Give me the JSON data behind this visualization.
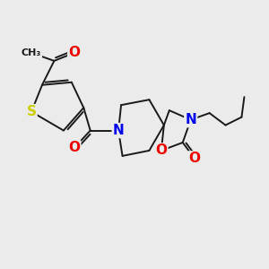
{
  "background_color": "#ebebeb",
  "atom_colors": {
    "C": "#1a1a1a",
    "N": "#0000ee",
    "O": "#ee0000",
    "S": "#cccc00"
  },
  "bond_color": "#1a1a1a",
  "bond_width": 1.4,
  "font_size_atom": 10
}
